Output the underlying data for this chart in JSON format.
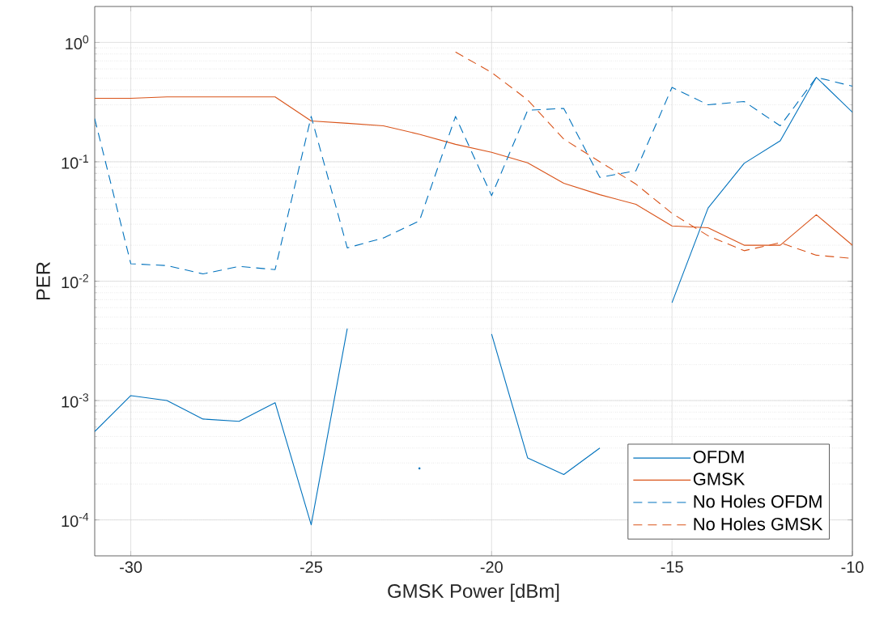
{
  "chart_data": {
    "type": "line",
    "xlabel": "GMSK Power [dBm]",
    "ylabel": "PER",
    "x": [
      -31,
      -30,
      -29,
      -28,
      -27,
      -26,
      -25,
      -24,
      -23,
      -22,
      -21,
      -20,
      -19,
      -18,
      -17,
      -16,
      -15,
      -14,
      -13,
      -12,
      -11,
      -10
    ],
    "series": [
      {
        "name": "OFDM",
        "color": "#0072bd",
        "line_style": "solid",
        "values": [
          0.00055,
          0.0011,
          0.001,
          0.0007,
          0.00067,
          0.00096,
          9.1e-05,
          0.004,
          null,
          0.00027,
          null,
          0.0036,
          0.00033,
          0.00024,
          0.0004,
          null,
          0.0066,
          0.041,
          0.097,
          0.15,
          0.51,
          0.26
        ]
      },
      {
        "name": "GMSK",
        "color": "#d95319",
        "line_style": "solid",
        "values": [
          0.34,
          0.34,
          0.35,
          0.35,
          0.35,
          0.35,
          0.22,
          0.21,
          0.2,
          0.17,
          0.14,
          0.12,
          0.098,
          0.066,
          0.053,
          0.044,
          0.029,
          0.028,
          0.02,
          0.02,
          0.036,
          0.02
        ]
      },
      {
        "name": "No Holes OFDM",
        "color": "#0072bd",
        "line_style": "dashed",
        "values": [
          0.23,
          0.014,
          0.0135,
          0.0115,
          0.0133,
          0.0125,
          0.24,
          0.019,
          0.023,
          0.032,
          0.24,
          0.052,
          0.27,
          0.28,
          0.074,
          0.084,
          0.42,
          0.3,
          0.32,
          0.2,
          0.51,
          0.43
        ]
      },
      {
        "name": "No Holes GMSK",
        "color": "#d95319",
        "line_style": "dashed",
        "x": [
          -21,
          -20,
          -19,
          -18,
          -17,
          -16,
          -15,
          -14,
          -13,
          -12,
          -11,
          -10
        ],
        "values": [
          0.83,
          0.56,
          0.33,
          0.155,
          0.1,
          0.065,
          0.037,
          0.024,
          0.018,
          0.021,
          0.0165,
          0.0155
        ]
      }
    ],
    "log": "y",
    "xlim": [
      -31,
      -10
    ],
    "ylim": [
      5e-05,
      2
    ],
    "xticks": [
      -30,
      -25,
      -20,
      -15,
      -10
    ],
    "yticks": [
      {
        "value": 0.0001,
        "label": "10$^{-4}$"
      },
      {
        "value": 0.001,
        "label": "10$^{-3}$"
      },
      {
        "value": 0.01,
        "label": "10$^{-2}$"
      },
      {
        "value": 0.1,
        "label": "10$^{-1}$"
      },
      {
        "value": 1,
        "label": "10$^{0}$"
      }
    ],
    "grid": true,
    "legend": "bottom right"
  }
}
